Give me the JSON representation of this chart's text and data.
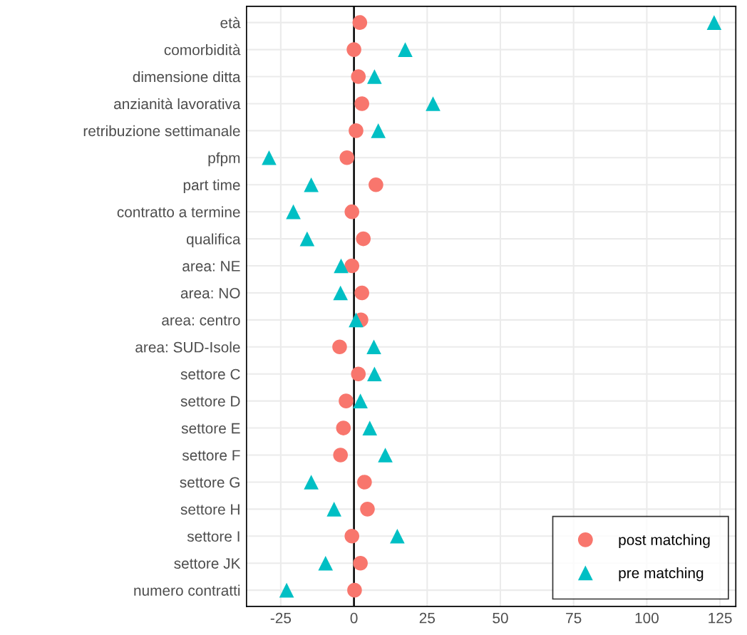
{
  "chart_data": {
    "type": "scatter",
    "orientation": "horizontal",
    "categories": [
      "età",
      "comorbidità",
      "dimensione ditta",
      "anzianità lavorativa",
      "retribuzione settimanale",
      "pfpm",
      "part time",
      "contratto a termine",
      "qualifica",
      "area: NE",
      "area: NO",
      "area: centro",
      "area: SUD-Isole",
      "settore C",
      "settore D",
      "settore E",
      "settore F",
      "settore G",
      "settore H",
      "settore I",
      "settore JK",
      "numero contratti"
    ],
    "series": [
      {
        "name": "post matching",
        "color": "#f8766d",
        "marker": "circle",
        "values": [
          2,
          0,
          1.5,
          2.7,
          0.7,
          -2.4,
          7.5,
          -0.7,
          3.2,
          -0.7,
          2.7,
          2.4,
          -4.9,
          1.5,
          -2.7,
          -3.6,
          -4.6,
          3.6,
          4.6,
          -0.7,
          2.2,
          0.2
        ]
      },
      {
        "name": "pre matching",
        "color": "#00bfc4",
        "marker": "triangle",
        "values": [
          123,
          17.5,
          7,
          27,
          8.3,
          -29,
          -14.6,
          -20.7,
          -16,
          -4.4,
          -4.6,
          0.7,
          6.8,
          7,
          2.2,
          5.4,
          10.7,
          -14.6,
          -6.8,
          14.8,
          -9.7,
          -23
        ]
      }
    ],
    "xlim": [
      -36.7,
      130.4
    ],
    "xticks": [
      -25,
      0,
      25,
      50,
      75,
      100,
      125
    ],
    "ref_lines": [
      {
        "axis": "x",
        "value": 0,
        "color": "#000000"
      }
    ],
    "grid": true,
    "legend": "bottom right"
  }
}
